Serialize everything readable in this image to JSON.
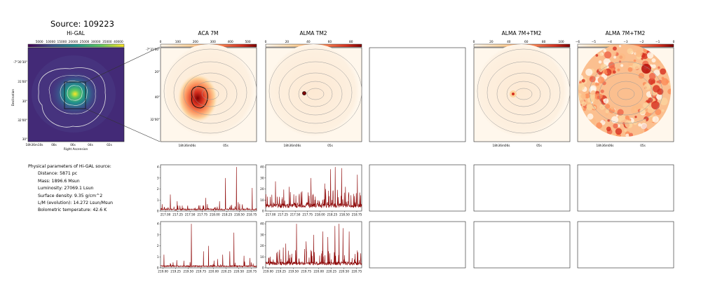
{
  "title": "Source: 109223",
  "panels": {
    "higal": {
      "title": "Hi-GAL",
      "colorbar_ticks": [
        "5000",
        "10000",
        "15000",
        "20000",
        "25000",
        "30000",
        "35000",
        "40000"
      ],
      "ylabel": "Declination",
      "xlabel": "Right Ascension",
      "yticks": [
        "-7°30'30\"",
        "31'00\"",
        "30\"",
        "32'00\"",
        "30\""
      ],
      "xticks": [
        "18h36m10s",
        "08s",
        "06s",
        "04s",
        "02s"
      ]
    },
    "aca7m": {
      "title": "ACA 7M",
      "colorbar_ticks": [
        "0",
        "100",
        "200",
        "300",
        "400",
        "500"
      ],
      "yticks": [
        "-7°31'00\"",
        "20\"",
        "40\"",
        "32'00\""
      ],
      "xticks": [
        "18h36m06s",
        "05s"
      ]
    },
    "almatm2": {
      "title": "ALMA TM2",
      "colorbar_ticks": [
        "0",
        "20",
        "40",
        "60",
        "80"
      ],
      "xticks": [
        "18h36m06s",
        "05s"
      ]
    },
    "combined": {
      "title": "ALMA 7M+TM2",
      "colorbar_ticks": [
        "0",
        "20",
        "40",
        "60",
        "80",
        "100"
      ],
      "xticks": [
        "18h36m06s",
        "05s"
      ]
    },
    "combined_log": {
      "title": "ALMA 7M+TM2",
      "colorbar_ticks": [
        "−6",
        "−5",
        "−4",
        "−3",
        "−2",
        "−1",
        "0"
      ],
      "xticks": [
        "18h36m06s",
        "05s"
      ]
    }
  },
  "params": {
    "heading": "Physical parameters of Hi-GAL source:",
    "lines": [
      "Distance: 5871 pc",
      "Mass: 1896.6 Msun",
      "Luminosity: 27069.1 Lsun",
      "Surface density: 9.35 g/cm^2",
      "L/M (evolution): 14.272 Lsun/Msun",
      "Bolometric temperature: 42.6 K"
    ]
  },
  "chart_data": [
    {
      "type": "line",
      "name": "aca-spectrum-1",
      "x_range": [
        216.9,
        218.85
      ],
      "ylim": [
        0,
        4.2
      ],
      "xticks": [
        "217.00",
        "217.25",
        "217.50",
        "217.75",
        "218.00",
        "218.25",
        "218.50",
        "218.75"
      ],
      "yticks": [
        "0",
        "1",
        "2",
        "3",
        "4"
      ],
      "baseline": 0.15,
      "peaks": [
        [
          217.1,
          1.5
        ],
        [
          217.24,
          0.9
        ],
        [
          217.82,
          1.2
        ],
        [
          218.1,
          0.9
        ],
        [
          218.22,
          3.0
        ],
        [
          218.32,
          0.5
        ],
        [
          218.44,
          4.0
        ],
        [
          218.48,
          0.8
        ],
        [
          218.76,
          2.1
        ],
        [
          217.45,
          0.35
        ],
        [
          217.6,
          0.3
        ]
      ],
      "color": "#8b0000"
    },
    {
      "type": "line",
      "name": "alma-spectrum-1",
      "x_range": [
        216.9,
        218.85
      ],
      "ylim": [
        0,
        42
      ],
      "xticks": [
        "217.00",
        "217.25",
        "217.50",
        "217.75",
        "218.00",
        "218.25",
        "218.50",
        "218.75"
      ],
      "yticks": [
        "0",
        "10",
        "20",
        "30",
        "40"
      ],
      "baseline": 5,
      "peaks": [
        [
          217.1,
          27
        ],
        [
          217.38,
          22
        ],
        [
          217.82,
          30
        ],
        [
          218.1,
          25
        ],
        [
          218.22,
          38
        ],
        [
          218.31,
          40
        ],
        [
          218.44,
          39
        ],
        [
          218.76,
          33
        ],
        [
          218.52,
          22
        ]
      ],
      "color": "#8b0000"
    },
    {
      "type": "line",
      "name": "aca-spectrum-2",
      "x_range": [
        218.95,
        220.85
      ],
      "ylim": [
        0,
        4.2
      ],
      "xticks": [
        "219.00",
        "219.25",
        "219.50",
        "219.75",
        "220.00",
        "220.25",
        "220.50",
        "220.75"
      ],
      "yticks": [
        "0",
        "1",
        "2",
        "3",
        "4"
      ],
      "baseline": 0.15,
      "peaks": [
        [
          219.02,
          1.2
        ],
        [
          219.27,
          0.7
        ],
        [
          219.56,
          4.0
        ],
        [
          219.8,
          1.5
        ],
        [
          219.9,
          2.0
        ],
        [
          220.08,
          0.8
        ],
        [
          220.18,
          1.2
        ],
        [
          220.32,
          1.5
        ],
        [
          220.4,
          3.2
        ],
        [
          220.6,
          1.1
        ],
        [
          220.72,
          0.9
        ]
      ],
      "color": "#8b0000"
    },
    {
      "type": "line",
      "name": "alma-spectrum-2",
      "x_range": [
        218.95,
        220.85
      ],
      "ylim": [
        0,
        42
      ],
      "xticks": [
        "219.00",
        "219.25",
        "219.50",
        "219.75",
        "220.00",
        "220.25",
        "220.50",
        "220.75"
      ],
      "yticks": [
        "0",
        "10",
        "20",
        "30",
        "40"
      ],
      "baseline": 4,
      "peaks": [
        [
          219.56,
          40
        ],
        [
          219.9,
          30
        ],
        [
          220.08,
          33
        ],
        [
          220.32,
          38
        ],
        [
          220.4,
          40
        ],
        [
          220.48,
          36
        ],
        [
          220.6,
          33
        ],
        [
          220.18,
          28
        ],
        [
          219.35,
          22
        ],
        [
          219.75,
          24
        ]
      ],
      "color": "#8b0000"
    }
  ]
}
